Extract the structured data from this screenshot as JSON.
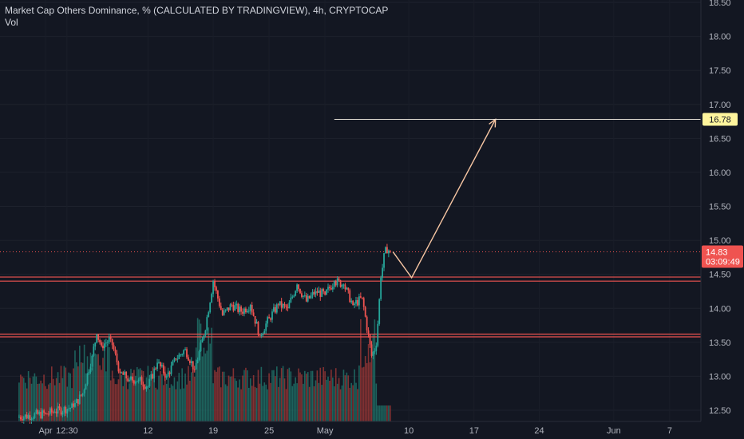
{
  "header": {
    "title": "Market Cap Others Dominance, % (CALCULATED BY TRADINGVIEW), 4h, CRYPTOCAP",
    "vol_label": "Vol"
  },
  "colors": {
    "background": "#131722",
    "up": "#26a69a",
    "down": "#ef5350",
    "up_volume": "#1f6b64",
    "down_volume": "#8e3434",
    "projection": "#f7c6a3",
    "target_line": "#e8e2d8",
    "target_badge": "#fff59d",
    "price_badge": "#ef5350",
    "sr_line": "#ef5350",
    "axis_text": "#b2b5be"
  },
  "price_axis": {
    "ticks": [
      "18.50",
      "18.00",
      "17.50",
      "17.00",
      "16.50",
      "16.00",
      "15.50",
      "15.00",
      "14.50",
      "14.00",
      "13.50",
      "13.00",
      "12.50"
    ],
    "current_price": "14.83",
    "countdown": "03:09:49",
    "target_price": "16.78"
  },
  "time_axis": {
    "labels": [
      "Apr",
      "12:30",
      "12",
      "19",
      "25",
      "May",
      "10",
      "17",
      "24",
      "Jun",
      "7"
    ]
  },
  "chart_data": {
    "type": "candlestick",
    "title": "Market Cap Others Dominance, % (CALCULATED BY TRADINGVIEW), 4h, CRYPTOCAP",
    "xlabel": "",
    "ylabel": "",
    "ylim": [
      12.42,
      18.55
    ],
    "timeframe": "4h",
    "x_range_days": [
      "Mar 29",
      "Jun 8"
    ],
    "series": [
      {
        "kind": "ohlc_close_path",
        "points": [
          {
            "day": "Mar 29",
            "close": 12.4
          },
          {
            "day": "Apr 1",
            "close": 12.45
          },
          {
            "day": "Apr 2",
            "close": 12.48
          },
          {
            "day": "Apr 4",
            "close": 12.55
          },
          {
            "day": "Apr 5",
            "close": 12.75
          },
          {
            "day": "Apr 6",
            "close": 13.3
          },
          {
            "day": "Apr 6",
            "close": 13.62
          },
          {
            "day": "Apr 7",
            "close": 13.45
          },
          {
            "day": "Apr 8",
            "close": 13.55
          },
          {
            "day": "Apr 9",
            "close": 13.05
          },
          {
            "day": "Apr 10",
            "close": 12.95
          },
          {
            "day": "Apr 11",
            "close": 12.95
          },
          {
            "day": "Apr 12",
            "close": 12.85
          },
          {
            "day": "Apr 13",
            "close": 13.2
          },
          {
            "day": "Apr 14",
            "close": 13.0
          },
          {
            "day": "Apr 15",
            "close": 13.25
          },
          {
            "day": "Apr 16",
            "close": 13.4
          },
          {
            "day": "Apr 17",
            "close": 13.1
          },
          {
            "day": "Apr 18",
            "close": 13.6
          },
          {
            "day": "Apr 19",
            "close": 14.4
          },
          {
            "day": "Apr 20",
            "close": 13.9
          },
          {
            "day": "Apr 21",
            "close": 14.05
          },
          {
            "day": "Apr 22",
            "close": 13.95
          },
          {
            "day": "Apr 23",
            "close": 14.05
          },
          {
            "day": "Apr 24",
            "close": 13.6
          },
          {
            "day": "Apr 25",
            "close": 13.85
          },
          {
            "day": "Apr 26",
            "close": 14.05
          },
          {
            "day": "Apr 27",
            "close": 14.0
          },
          {
            "day": "Apr 28",
            "close": 14.35
          },
          {
            "day": "Apr 29",
            "close": 14.1
          },
          {
            "day": "Apr 30",
            "close": 14.25
          },
          {
            "day": "May 1",
            "close": 14.2
          },
          {
            "day": "May 2",
            "close": 14.4
          },
          {
            "day": "May 3",
            "close": 14.35
          },
          {
            "day": "May 4",
            "close": 14.05
          },
          {
            "day": "May 5",
            "close": 14.15
          },
          {
            "day": "May 6",
            "close": 13.3
          },
          {
            "day": "May 6",
            "close": 13.45
          },
          {
            "day": "May 7",
            "close": 14.45
          },
          {
            "day": "May 7",
            "close": 14.9
          },
          {
            "day": "May 8",
            "close": 14.83
          }
        ]
      }
    ],
    "current_price": 14.83,
    "support_resistance_lines": [
      {
        "price_bottom": 14.4,
        "price_top": 14.46
      },
      {
        "price_bottom": 13.58,
        "price_top": 13.62
      }
    ],
    "projection_path": [
      {
        "day": "May 8",
        "price": 14.83
      },
      {
        "day": "May 10",
        "price": 14.45
      },
      {
        "day": "May 19",
        "price": 16.78
      }
    ],
    "target_line": {
      "price": 16.78,
      "from_day": "May 2"
    },
    "volume": "bars along bottom, colored by candle direction"
  }
}
